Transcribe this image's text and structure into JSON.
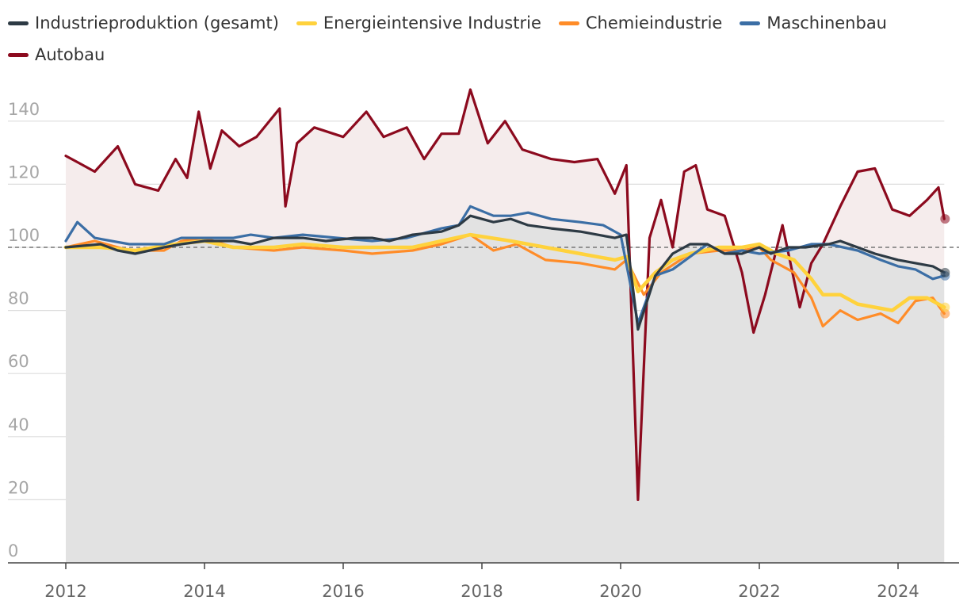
{
  "chart_data": {
    "type": "line",
    "title": "",
    "xlabel": "",
    "ylabel": "",
    "ylim": [
      0,
      150
    ],
    "xlim": [
      "2012-01",
      "2024-09"
    ],
    "y_ticks": [
      "0",
      "20",
      "40",
      "60",
      "80",
      "100",
      "120",
      "140"
    ],
    "x_ticks": [
      "2012",
      "2014",
      "2016",
      "2018",
      "2020",
      "2022",
      "2024"
    ],
    "reference_line": 100,
    "grid": "horizontal",
    "legend_position": "top",
    "series": [
      {
        "name": "Industrieproduktion (gesamt)",
        "color": "#2d3a44",
        "points": [
          [
            "2012-01",
            100
          ],
          [
            "2012-07",
            101
          ],
          [
            "2012-10",
            99
          ],
          [
            "2013-01",
            98
          ],
          [
            "2013-06",
            100
          ],
          [
            "2013-09",
            101
          ],
          [
            "2014-01",
            102
          ],
          [
            "2014-06",
            102
          ],
          [
            "2014-09",
            101
          ],
          [
            "2015-01",
            103
          ],
          [
            "2015-06",
            103
          ],
          [
            "2015-10",
            102
          ],
          [
            "2016-03",
            103
          ],
          [
            "2016-06",
            103
          ],
          [
            "2016-09",
            102
          ],
          [
            "2017-01",
            104
          ],
          [
            "2017-06",
            105
          ],
          [
            "2017-09",
            107
          ],
          [
            "2017-11",
            110
          ],
          [
            "2018-03",
            108
          ],
          [
            "2018-06",
            109
          ],
          [
            "2018-09",
            107
          ],
          [
            "2019-01",
            106
          ],
          [
            "2019-06",
            105
          ],
          [
            "2019-09",
            104
          ],
          [
            "2019-12",
            103
          ],
          [
            "2020-02",
            104
          ],
          [
            "2020-04",
            74
          ],
          [
            "2020-07",
            91
          ],
          [
            "2020-10",
            98
          ],
          [
            "2021-01",
            101
          ],
          [
            "2021-04",
            101
          ],
          [
            "2021-07",
            98
          ],
          [
            "2021-10",
            98
          ],
          [
            "2022-01",
            100
          ],
          [
            "2022-03",
            98
          ],
          [
            "2022-06",
            100
          ],
          [
            "2022-09",
            100
          ],
          [
            "2023-01",
            101
          ],
          [
            "2023-03",
            102
          ],
          [
            "2023-06",
            100
          ],
          [
            "2023-09",
            98
          ],
          [
            "2024-01",
            96
          ],
          [
            "2024-04",
            95
          ],
          [
            "2024-07",
            94
          ],
          [
            "2024-09",
            92
          ]
        ]
      },
      {
        "name": "Energieintensive Industrie",
        "color": "#ffd23c",
        "points": [
          [
            "2012-01",
            100
          ],
          [
            "2012-07",
            100
          ],
          [
            "2013-01",
            99
          ],
          [
            "2013-08",
            101
          ],
          [
            "2014-01",
            102
          ],
          [
            "2014-06",
            100
          ],
          [
            "2015-01",
            100
          ],
          [
            "2015-06",
            101
          ],
          [
            "2016-01",
            100
          ],
          [
            "2016-06",
            100
          ],
          [
            "2017-01",
            100
          ],
          [
            "2017-06",
            102
          ],
          [
            "2017-11",
            104
          ],
          [
            "2018-06",
            102
          ],
          [
            "2018-12",
            100
          ],
          [
            "2019-06",
            98
          ],
          [
            "2019-12",
            96
          ],
          [
            "2020-02",
            97
          ],
          [
            "2020-04",
            86
          ],
          [
            "2020-07",
            92
          ],
          [
            "2020-10",
            96
          ],
          [
            "2021-01",
            98
          ],
          [
            "2021-06",
            100
          ],
          [
            "2021-10",
            100
          ],
          [
            "2022-01",
            101
          ],
          [
            "2022-04",
            98
          ],
          [
            "2022-07",
            96
          ],
          [
            "2022-10",
            90
          ],
          [
            "2022-12",
            85
          ],
          [
            "2023-03",
            85
          ],
          [
            "2023-06",
            82
          ],
          [
            "2023-09",
            81
          ],
          [
            "2023-12",
            80
          ],
          [
            "2024-03",
            84
          ],
          [
            "2024-06",
            84
          ],
          [
            "2024-09",
            81
          ]
        ]
      },
      {
        "name": "Chemieindustrie",
        "color": "#ff8c28",
        "points": [
          [
            "2012-01",
            100
          ],
          [
            "2012-06",
            102
          ],
          [
            "2012-12",
            99
          ],
          [
            "2013-06",
            99
          ],
          [
            "2013-09",
            102
          ],
          [
            "2014-01",
            103
          ],
          [
            "2014-06",
            100
          ],
          [
            "2015-01",
            99
          ],
          [
            "2015-06",
            100
          ],
          [
            "2016-01",
            99
          ],
          [
            "2016-06",
            98
          ],
          [
            "2017-01",
            99
          ],
          [
            "2017-06",
            101
          ],
          [
            "2017-11",
            104
          ],
          [
            "2018-03",
            99
          ],
          [
            "2018-07",
            101
          ],
          [
            "2018-12",
            96
          ],
          [
            "2019-06",
            95
          ],
          [
            "2019-12",
            93
          ],
          [
            "2020-02",
            96
          ],
          [
            "2020-05",
            85
          ],
          [
            "2020-08",
            92
          ],
          [
            "2021-01",
            98
          ],
          [
            "2021-06",
            99
          ],
          [
            "2021-10",
            99
          ],
          [
            "2022-01",
            100
          ],
          [
            "2022-03",
            96
          ],
          [
            "2022-07",
            92
          ],
          [
            "2022-10",
            84
          ],
          [
            "2022-12",
            75
          ],
          [
            "2023-03",
            80
          ],
          [
            "2023-06",
            77
          ],
          [
            "2023-10",
            79
          ],
          [
            "2024-01",
            76
          ],
          [
            "2024-04",
            83
          ],
          [
            "2024-07",
            84
          ],
          [
            "2024-09",
            79
          ]
        ]
      },
      {
        "name": "Maschinenbau",
        "color": "#3b6ea5",
        "points": [
          [
            "2012-01",
            102
          ],
          [
            "2012-03",
            108
          ],
          [
            "2012-06",
            103
          ],
          [
            "2012-12",
            101
          ],
          [
            "2013-06",
            101
          ],
          [
            "2013-09",
            103
          ],
          [
            "2014-01",
            103
          ],
          [
            "2014-06",
            103
          ],
          [
            "2014-09",
            104
          ],
          [
            "2015-01",
            103
          ],
          [
            "2015-06",
            104
          ],
          [
            "2015-12",
            103
          ],
          [
            "2016-06",
            102
          ],
          [
            "2016-12",
            103
          ],
          [
            "2017-06",
            106
          ],
          [
            "2017-09",
            107
          ],
          [
            "2017-11",
            113
          ],
          [
            "2018-03",
            110
          ],
          [
            "2018-06",
            110
          ],
          [
            "2018-09",
            111
          ],
          [
            "2019-01",
            109
          ],
          [
            "2019-06",
            108
          ],
          [
            "2019-10",
            107
          ],
          [
            "2020-01",
            104
          ],
          [
            "2020-04",
            76
          ],
          [
            "2020-07",
            91
          ],
          [
            "2020-10",
            93
          ],
          [
            "2021-01",
            97
          ],
          [
            "2021-04",
            101
          ],
          [
            "2021-07",
            98
          ],
          [
            "2021-10",
            99
          ],
          [
            "2022-01",
            98
          ],
          [
            "2022-06",
            99
          ],
          [
            "2022-10",
            101
          ],
          [
            "2023-01",
            101
          ],
          [
            "2023-06",
            99
          ],
          [
            "2023-10",
            96
          ],
          [
            "2024-01",
            94
          ],
          [
            "2024-04",
            93
          ],
          [
            "2024-07",
            90
          ],
          [
            "2024-09",
            91
          ]
        ]
      },
      {
        "name": "Autobau",
        "color": "#8c0a1e",
        "points": [
          [
            "2012-01",
            129
          ],
          [
            "2012-03",
            127
          ],
          [
            "2012-06",
            124
          ],
          [
            "2012-10",
            132
          ],
          [
            "2013-01",
            120
          ],
          [
            "2013-05",
            118
          ],
          [
            "2013-08",
            128
          ],
          [
            "2013-10",
            122
          ],
          [
            "2013-12",
            143
          ],
          [
            "2014-02",
            125
          ],
          [
            "2014-04",
            137
          ],
          [
            "2014-07",
            132
          ],
          [
            "2014-10",
            135
          ],
          [
            "2015-02",
            144
          ],
          [
            "2015-03",
            113
          ],
          [
            "2015-05",
            133
          ],
          [
            "2015-08",
            138
          ],
          [
            "2016-01",
            135
          ],
          [
            "2016-05",
            143
          ],
          [
            "2016-08",
            135
          ],
          [
            "2016-12",
            138
          ],
          [
            "2017-03",
            128
          ],
          [
            "2017-06",
            136
          ],
          [
            "2017-09",
            136
          ],
          [
            "2017-11",
            150
          ],
          [
            "2018-02",
            133
          ],
          [
            "2018-05",
            140
          ],
          [
            "2018-08",
            131
          ],
          [
            "2019-01",
            128
          ],
          [
            "2019-05",
            127
          ],
          [
            "2019-09",
            128
          ],
          [
            "2019-12",
            117
          ],
          [
            "2020-02",
            126
          ],
          [
            "2020-04",
            20
          ],
          [
            "2020-06",
            103
          ],
          [
            "2020-08",
            115
          ],
          [
            "2020-10",
            100
          ],
          [
            "2020-12",
            124
          ],
          [
            "2021-02",
            126
          ],
          [
            "2021-04",
            112
          ],
          [
            "2021-07",
            110
          ],
          [
            "2021-10",
            92
          ],
          [
            "2021-12",
            73
          ],
          [
            "2022-02",
            85
          ],
          [
            "2022-05",
            107
          ],
          [
            "2022-08",
            81
          ],
          [
            "2022-10",
            95
          ],
          [
            "2022-12",
            101
          ],
          [
            "2023-03",
            113
          ],
          [
            "2023-06",
            124
          ],
          [
            "2023-09",
            125
          ],
          [
            "2023-12",
            112
          ],
          [
            "2024-03",
            110
          ],
          [
            "2024-06",
            115
          ],
          [
            "2024-08",
            119
          ],
          [
            "2024-09",
            109
          ]
        ]
      }
    ]
  }
}
